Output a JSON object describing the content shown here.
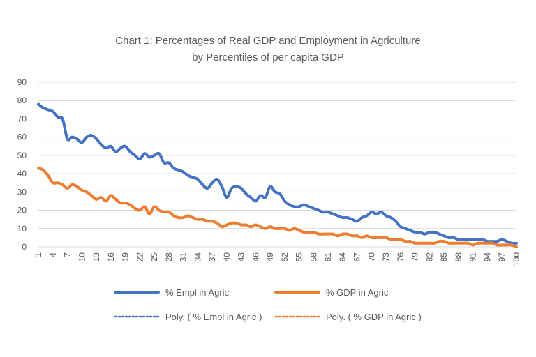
{
  "chart_data": {
    "type": "line",
    "title_line1": "Chart 1: Percentages of Real GDP and Employment in Agriculture",
    "title_line2": "by Percentiles of per capita GDP",
    "xlabel": "",
    "ylabel": "",
    "ylim": [
      0,
      90
    ],
    "yticks": [
      0,
      10,
      20,
      30,
      40,
      50,
      60,
      70,
      80,
      90
    ],
    "xlim": [
      1,
      100
    ],
    "xticks": [
      1,
      4,
      7,
      10,
      13,
      16,
      19,
      22,
      25,
      28,
      31,
      34,
      37,
      40,
      43,
      46,
      49,
      52,
      55,
      58,
      61,
      64,
      67,
      70,
      73,
      76,
      79,
      82,
      85,
      88,
      91,
      94,
      97,
      100
    ],
    "grid": true,
    "legend_position": "bottom",
    "colors": {
      "empl": "#4472C4",
      "gdp": "#ED7D31",
      "grid": "#D9D9D9"
    },
    "series": [
      {
        "name": "% Empl in Agric",
        "x": [
          1,
          2,
          3,
          4,
          5,
          6,
          7,
          8,
          9,
          10,
          11,
          12,
          13,
          14,
          15,
          16,
          17,
          18,
          19,
          20,
          21,
          22,
          23,
          24,
          25,
          26,
          27,
          28,
          29,
          30,
          31,
          32,
          33,
          34,
          35,
          36,
          37,
          38,
          39,
          40,
          41,
          42,
          43,
          44,
          45,
          46,
          47,
          48,
          49,
          50,
          51,
          52,
          53,
          54,
          55,
          56,
          57,
          58,
          59,
          60,
          61,
          62,
          63,
          64,
          65,
          66,
          67,
          68,
          69,
          70,
          71,
          72,
          73,
          74,
          75,
          76,
          77,
          78,
          79,
          80,
          81,
          82,
          83,
          84,
          85,
          86,
          87,
          88,
          89,
          90,
          91,
          92,
          93,
          94,
          95,
          96,
          97,
          98,
          99,
          100
        ],
        "values": [
          78,
          76,
          75,
          74,
          71,
          70,
          59,
          60,
          59,
          57,
          60,
          61,
          59,
          56,
          54,
          55,
          52,
          54,
          55,
          52,
          50,
          48,
          51,
          49,
          50,
          51,
          46,
          46,
          43,
          42,
          41,
          39,
          38,
          37,
          34,
          32,
          35,
          37,
          33,
          27,
          32,
          33,
          32,
          29,
          27,
          25,
          28,
          27,
          33,
          30,
          29,
          25,
          23,
          22,
          22,
          23,
          22,
          21,
          20,
          19,
          19,
          18,
          17,
          16,
          16,
          15,
          14,
          16,
          17,
          19,
          18,
          19,
          17,
          16,
          14,
          11,
          10,
          9,
          8,
          8,
          7,
          8,
          8,
          7,
          6,
          5,
          5,
          4,
          4,
          4,
          4,
          4,
          4,
          3,
          3,
          3,
          4,
          3,
          2,
          2
        ]
      },
      {
        "name": "% GDP in Agric",
        "x": [
          1,
          2,
          3,
          4,
          5,
          6,
          7,
          8,
          9,
          10,
          11,
          12,
          13,
          14,
          15,
          16,
          17,
          18,
          19,
          20,
          21,
          22,
          23,
          24,
          25,
          26,
          27,
          28,
          29,
          30,
          31,
          32,
          33,
          34,
          35,
          36,
          37,
          38,
          39,
          40,
          41,
          42,
          43,
          44,
          45,
          46,
          47,
          48,
          49,
          50,
          51,
          52,
          53,
          54,
          55,
          56,
          57,
          58,
          59,
          60,
          61,
          62,
          63,
          64,
          65,
          66,
          67,
          68,
          69,
          70,
          71,
          72,
          73,
          74,
          75,
          76,
          77,
          78,
          79,
          80,
          81,
          82,
          83,
          84,
          85,
          86,
          87,
          88,
          89,
          90,
          91,
          92,
          93,
          94,
          95,
          96,
          97,
          98,
          99,
          100
        ],
        "values": [
          43,
          42,
          39,
          35,
          35,
          34,
          32,
          34,
          33,
          31,
          30,
          28,
          26,
          27,
          25,
          28,
          26,
          24,
          24,
          23,
          21,
          20,
          22,
          18,
          22,
          20,
          19,
          19,
          17,
          16,
          16,
          17,
          16,
          15,
          15,
          14,
          14,
          13,
          11,
          12,
          13,
          13,
          12,
          12,
          11,
          12,
          11,
          10,
          11,
          10,
          10,
          10,
          9,
          10,
          9,
          8,
          8,
          8,
          7,
          7,
          7,
          7,
          6,
          7,
          7,
          6,
          6,
          5,
          6,
          5,
          5,
          5,
          5,
          4,
          4,
          4,
          3,
          3,
          2,
          2,
          2,
          2,
          2,
          3,
          3,
          2,
          2,
          2,
          2,
          2,
          1,
          2,
          2,
          2,
          2,
          1,
          1,
          1,
          1,
          0
        ]
      }
    ],
    "trendlines": [
      {
        "name": "Poly. ( % Empl in Agric )",
        "of": "% Empl in Agric",
        "type": "polynomial",
        "start": 73,
        "end": 1
      },
      {
        "name": "Poly. ( % GDP in Agric )",
        "of": "% GDP in Agric",
        "type": "polynomial",
        "start": 37,
        "end": 1
      }
    ]
  }
}
